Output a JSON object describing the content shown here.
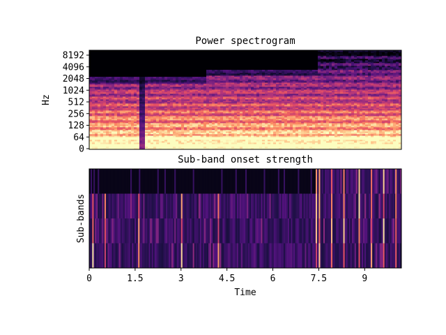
{
  "chart_data": [
    {
      "type": "heatmap",
      "title": "Power spectrogram",
      "ylabel": "Hz",
      "xlabel": "",
      "y_scale": "log",
      "y_ticks": [
        "0",
        "64",
        "128",
        "256",
        "512",
        "1024",
        "2048",
        "4096",
        "8192"
      ],
      "x_range": [
        0,
        10.2
      ],
      "colormap": "magma",
      "description_regions": [
        {
          "x_start": 0.0,
          "x_end": 1.6,
          "energy": "strong low band, moderate mids up to ~2048 Hz"
        },
        {
          "x_start": 1.6,
          "x_end": 3.8,
          "energy": "low band strong, mids to ~2048 Hz"
        },
        {
          "x_start": 3.8,
          "x_end": 7.4,
          "energy": "harmonics extend to ~4096 Hz"
        },
        {
          "x_start": 7.4,
          "x_end": 10.2,
          "energy": "broadband to ~8192 Hz"
        }
      ]
    },
    {
      "type": "heatmap",
      "title": "Sub-band onset strength",
      "ylabel": "Sub-bands",
      "xlabel": "Time",
      "x_ticks": [
        "0",
        "1.5",
        "3",
        "4.5",
        "6",
        "7.5",
        "9"
      ],
      "x_tick_values": [
        0,
        1.5,
        3,
        4.5,
        6,
        7.5,
        9
      ],
      "x_range": [
        0,
        10.2
      ],
      "n_bands": 4,
      "colormap": "magma",
      "strong_onsets": [
        0.1,
        0.5,
        1.6,
        3.0,
        4.2,
        7.4,
        7.5,
        7.9,
        8.3,
        8.8,
        9.2,
        9.6,
        10.0
      ]
    }
  ],
  "palette": {
    "background": "#000004",
    "dark": "#1c1044",
    "purple": "#51127c",
    "magenta": "#b73779",
    "coral": "#fc8961",
    "pale": "#fcfdbf"
  }
}
